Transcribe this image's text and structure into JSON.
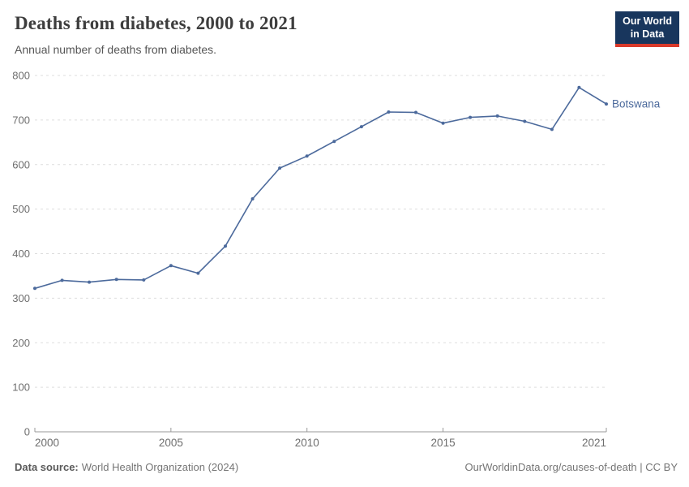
{
  "header": {
    "title": "Deaths from diabetes, 2000 to 2021",
    "subtitle": "Annual number of deaths from diabetes."
  },
  "logo": {
    "line1": "Our World",
    "line2": "in Data",
    "bg_color": "#18365d",
    "accent_color": "#d93a2b"
  },
  "chart_data": {
    "type": "line",
    "title": "Deaths from diabetes, 2000 to 2021",
    "xlabel": "",
    "ylabel": "",
    "x": [
      2000,
      2001,
      2002,
      2003,
      2004,
      2005,
      2006,
      2007,
      2008,
      2009,
      2010,
      2011,
      2012,
      2013,
      2014,
      2015,
      2016,
      2017,
      2018,
      2019,
      2020,
      2021
    ],
    "series": [
      {
        "name": "Botswana",
        "color": "#4c6a9c",
        "values": [
          322,
          340,
          336,
          342,
          341,
          373,
          356,
          417,
          523,
          592,
          619,
          652,
          685,
          718,
          717,
          693,
          706,
          709,
          697,
          679,
          773,
          736
        ]
      }
    ],
    "xlim": [
      2000,
      2021
    ],
    "ylim": [
      0,
      800
    ],
    "y_ticks": [
      0,
      100,
      200,
      300,
      400,
      500,
      600,
      700,
      800
    ],
    "x_ticks": [
      2000,
      2005,
      2010,
      2015,
      2021
    ],
    "grid": "horizontal-dashed",
    "legend_position": "end-of-line-label",
    "colors": {
      "grid": "#dddddd",
      "axis": "#999999",
      "tick_label": "#6e6e6e"
    }
  },
  "footer": {
    "source_label": "Data source:",
    "source_value": "World Health Organization (2024)",
    "attribution": "OurWorldinData.org/causes-of-death | CC BY"
  }
}
